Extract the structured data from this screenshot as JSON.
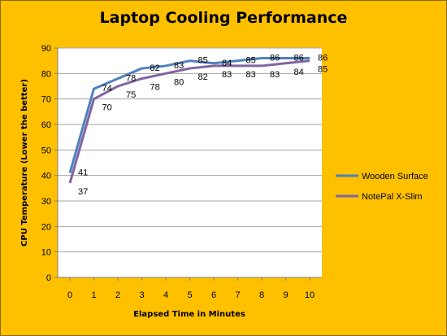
{
  "chart_data": {
    "type": "line",
    "title": "Laptop Cooling Performance",
    "xlabel": "Elapsed Time in Minutes",
    "ylabel": "CPU Temperature (Lower the better)",
    "x": [
      0,
      1,
      2,
      3,
      4,
      5,
      6,
      7,
      8,
      9,
      10
    ],
    "xlim": [
      0,
      10
    ],
    "ylim": [
      0,
      90
    ],
    "yticks": [
      0,
      10,
      20,
      30,
      40,
      50,
      60,
      70,
      80,
      90
    ],
    "grid": "horizontal",
    "legend_position": "right",
    "series": [
      {
        "name": "Wooden Surface",
        "color": "#4F81BD",
        "values": [
          41,
          74,
          78,
          82,
          83,
          85,
          84,
          85,
          86,
          86,
          86
        ],
        "labels": [
          "41",
          "74",
          "78",
          "82",
          "83",
          "85",
          "84",
          "85",
          "86",
          "86",
          "86"
        ]
      },
      {
        "name": "NotePal X-Slim",
        "color": "#8064A2",
        "values": [
          37,
          70,
          75,
          78,
          80,
          82,
          83,
          83,
          83,
          84,
          85
        ],
        "labels": [
          "37",
          "70",
          "75",
          "78",
          "80",
          "82",
          "83",
          "83",
          "83",
          "84",
          "85"
        ]
      }
    ]
  }
}
